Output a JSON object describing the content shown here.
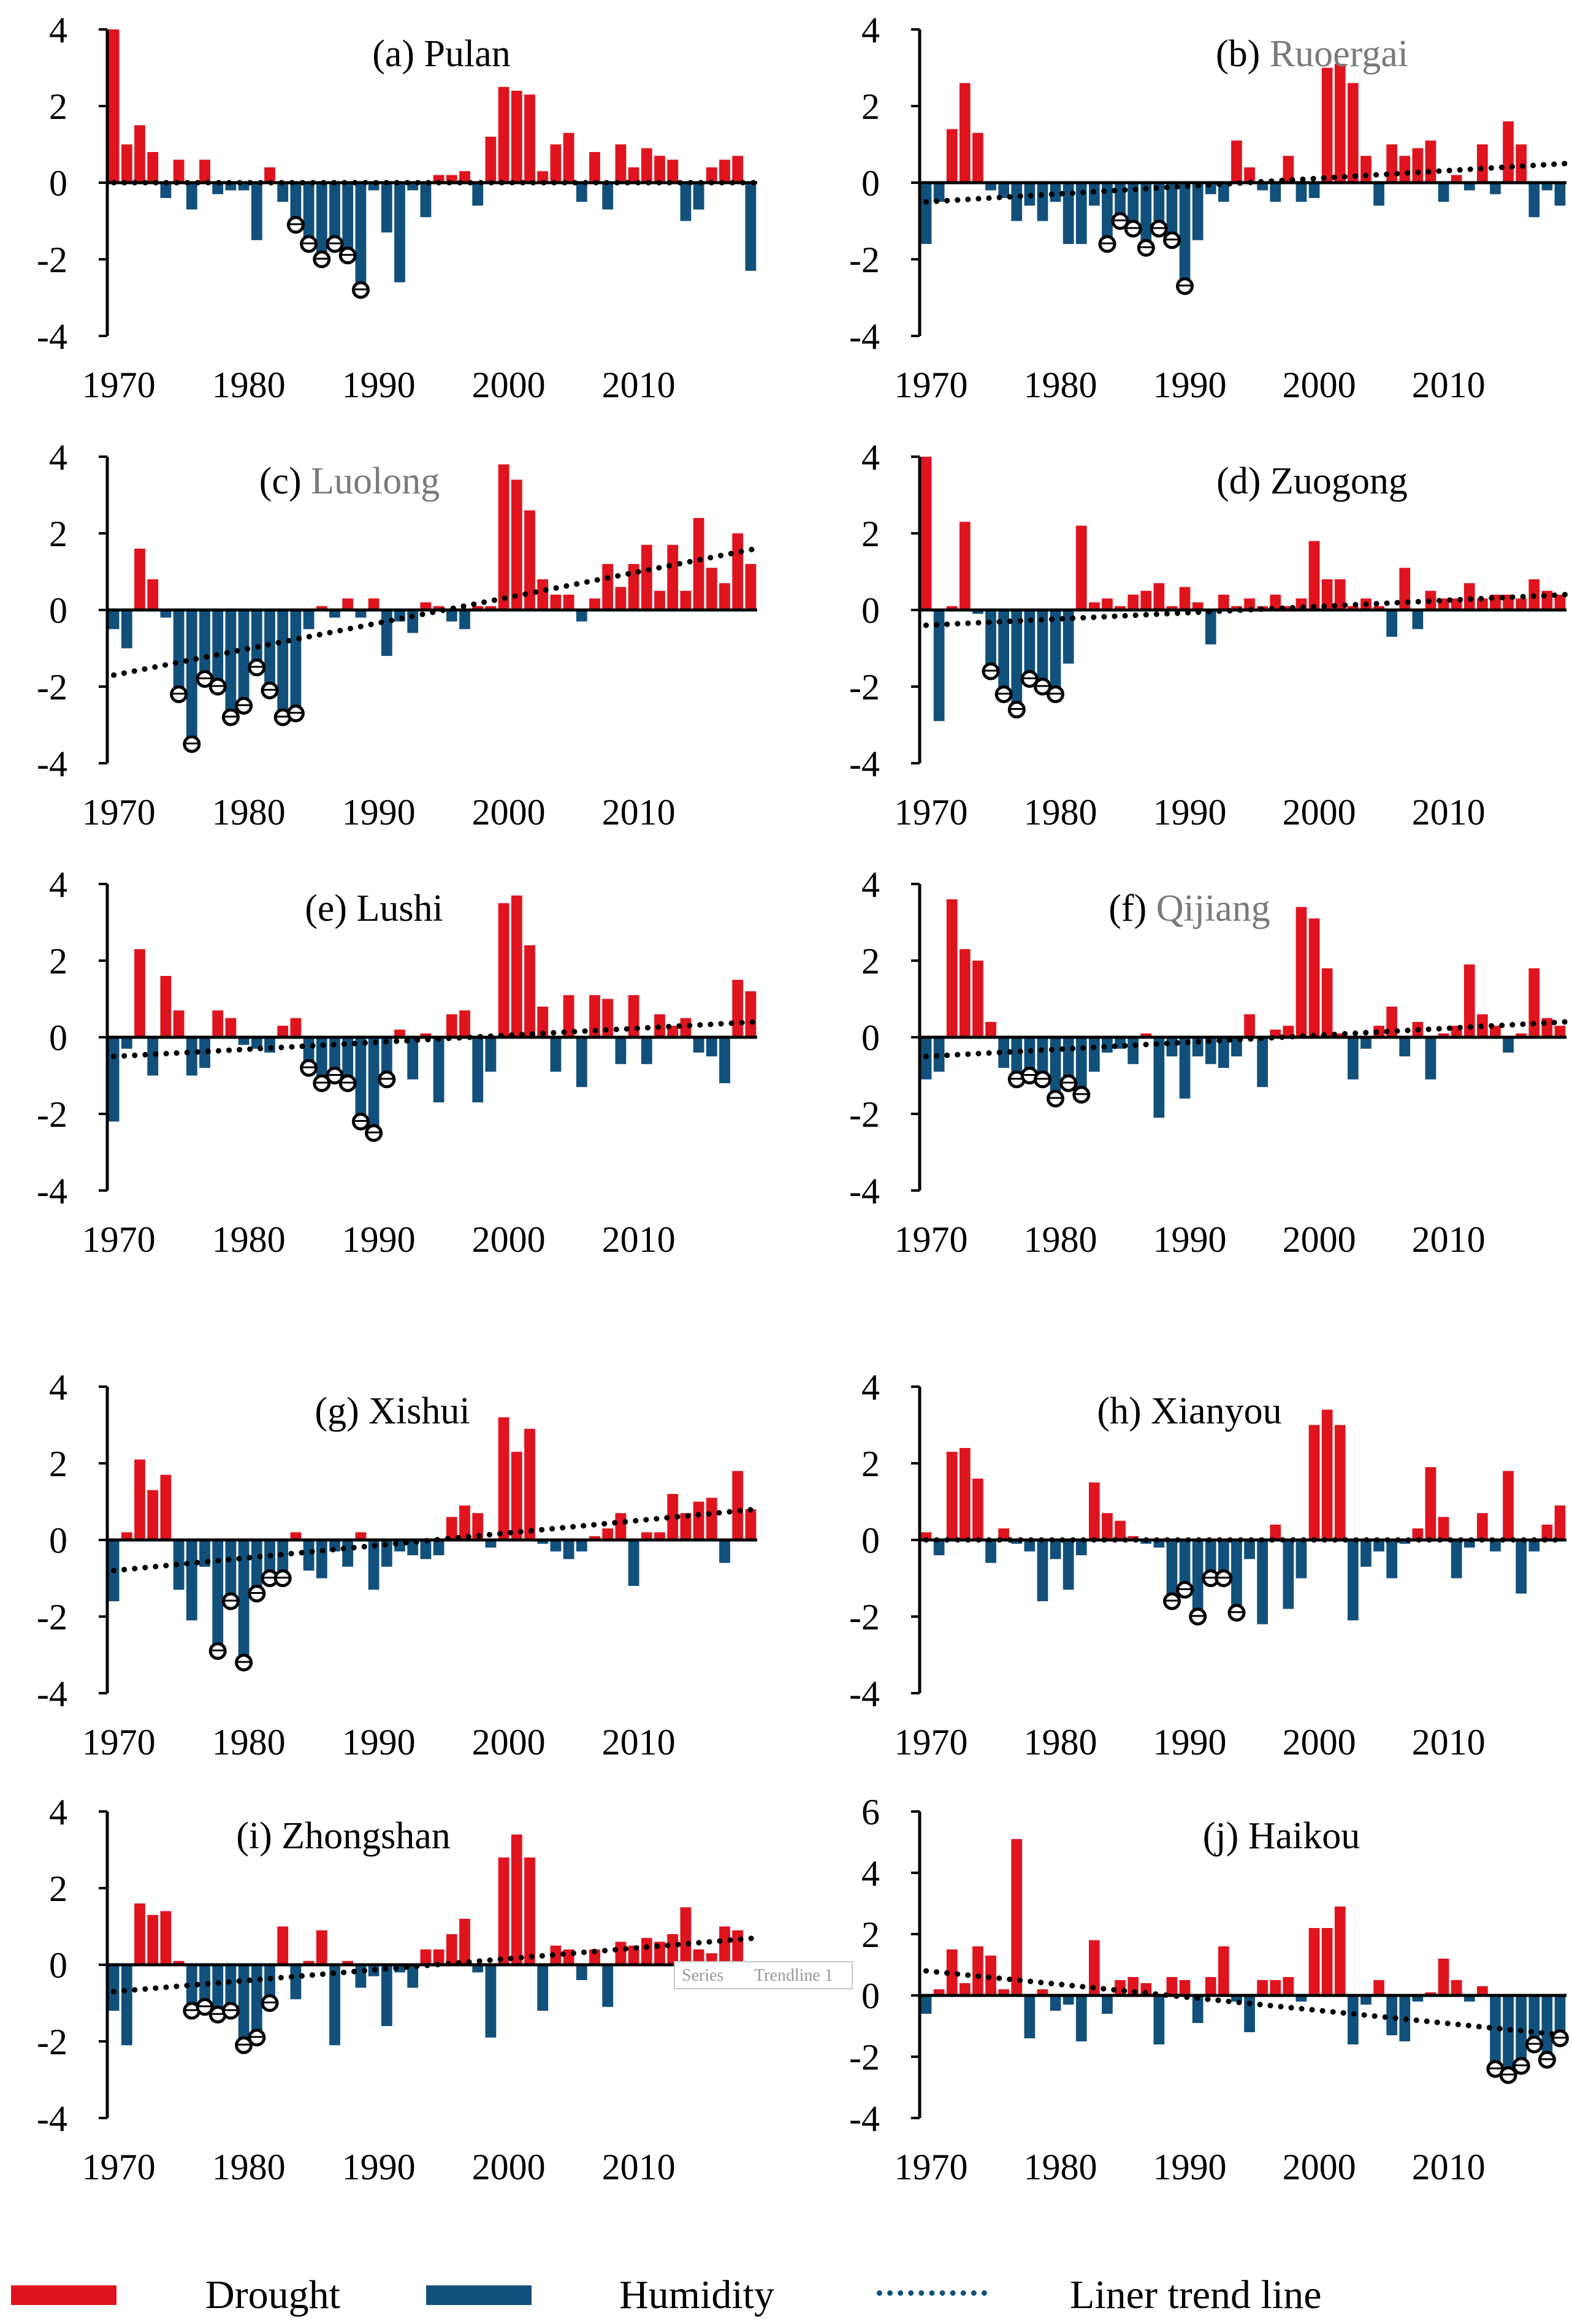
{
  "legend": {
    "drought_label": "Drought",
    "humidity_label": "Humidity",
    "trend_label": "Liner trend line"
  },
  "colors": {
    "drought": "#e0141e",
    "humidity": "#12507c",
    "trend": "#000000"
  },
  "artifact": {
    "tooltip_series": "Series",
    "tooltip_trend": "Trendline 1"
  },
  "chart_data": [
    {
      "type": "bar",
      "title_prefix": "(a) ",
      "title_name": "Pulan",
      "title_name_gray": false,
      "x": [
        1970,
        1971,
        1972,
        1973,
        1974,
        1975,
        1976,
        1977,
        1978,
        1979,
        1980,
        1981,
        1982,
        1983,
        1984,
        1985,
        1986,
        1987,
        1988,
        1989,
        1990,
        1991,
        1992,
        1993,
        1994,
        1995,
        1996,
        1997,
        1998,
        1999,
        2000,
        2001,
        2002,
        2003,
        2004,
        2005,
        2006,
        2007,
        2008,
        2009,
        2010,
        2011,
        2012,
        2013,
        2014,
        2015,
        2016,
        2017,
        2018,
        2019
      ],
      "values": [
        4,
        1,
        1.5,
        0.8,
        -0.4,
        0.6,
        -0.7,
        0.6,
        -0.3,
        -0.2,
        -0.2,
        -1.5,
        0.4,
        -0.5,
        -1.1,
        -1.6,
        -2,
        -1.6,
        -1.9,
        -2.8,
        -0.2,
        -1.3,
        -2.6,
        -0.2,
        -0.9,
        0.2,
        0.2,
        0.3,
        -0.6,
        1.2,
        2.5,
        2.4,
        2.3,
        0.3,
        1,
        1.3,
        -0.5,
        0.8,
        -0.7,
        1,
        0.4,
        0.9,
        0.7,
        0.6,
        -1,
        -0.7,
        0.4,
        0.6,
        0.7,
        -2.3
      ],
      "circled": [
        1984,
        1985,
        1986,
        1987,
        1988,
        1989
      ],
      "trend": [
        0,
        0
      ],
      "x_ticks": [
        1970,
        1980,
        1990,
        2000,
        2010
      ],
      "ylim": [
        -4,
        4
      ],
      "y_ticks": [
        4,
        2,
        0,
        -2,
        -4
      ]
    },
    {
      "type": "bar",
      "title_prefix": "(b) ",
      "title_name": "Ruoergai",
      "title_name_gray": true,
      "x": [
        1970,
        1971,
        1972,
        1973,
        1974,
        1975,
        1976,
        1977,
        1978,
        1979,
        1980,
        1981,
        1982,
        1983,
        1984,
        1985,
        1986,
        1987,
        1988,
        1989,
        1990,
        1991,
        1992,
        1993,
        1994,
        1995,
        1996,
        1997,
        1998,
        1999,
        2000,
        2001,
        2002,
        2003,
        2004,
        2005,
        2006,
        2007,
        2008,
        2009,
        2010,
        2011,
        2012,
        2013,
        2014,
        2015,
        2016,
        2017,
        2018,
        2019
      ],
      "values": [
        -1.6,
        -0.5,
        1.4,
        2.6,
        1.3,
        -0.2,
        -0.4,
        -1,
        -0.6,
        -1,
        -0.5,
        -1.6,
        -1.6,
        -0.6,
        -1.6,
        -1,
        -1.2,
        -1.7,
        -1.2,
        -1.5,
        -2.7,
        -1.5,
        -0.3,
        -0.5,
        1.1,
        0.4,
        -0.2,
        -0.5,
        0.7,
        -0.5,
        -0.4,
        3,
        3.1,
        2.6,
        0.7,
        -0.6,
        1,
        0.7,
        0.9,
        1.1,
        -0.5,
        0.2,
        -0.2,
        1,
        -0.3,
        1.6,
        1,
        -0.9,
        -0.2,
        -0.6
      ],
      "circled": [
        1984,
        1985,
        1986,
        1987,
        1988,
        1989,
        1990
      ],
      "trend": [
        -0.5,
        0.5
      ],
      "x_ticks": [
        1970,
        1980,
        1990,
        2000,
        2010
      ],
      "ylim": [
        -4,
        4
      ],
      "y_ticks": [
        4,
        2,
        0,
        -2,
        -4
      ]
    },
    {
      "type": "bar",
      "title_prefix": "(c) ",
      "title_name": "Luolong",
      "title_name_gray": true,
      "x": [
        1970,
        1971,
        1972,
        1973,
        1974,
        1975,
        1976,
        1977,
        1978,
        1979,
        1980,
        1981,
        1982,
        1983,
        1984,
        1985,
        1986,
        1987,
        1988,
        1989,
        1990,
        1991,
        1992,
        1993,
        1994,
        1995,
        1996,
        1997,
        1998,
        1999,
        2000,
        2001,
        2002,
        2003,
        2004,
        2005,
        2006,
        2007,
        2008,
        2009,
        2010,
        2011,
        2012,
        2013,
        2014,
        2015,
        2016,
        2017,
        2018,
        2019
      ],
      "values": [
        -0.5,
        -1,
        1.6,
        0.8,
        -0.2,
        -2.2,
        -3.5,
        -1.8,
        -2,
        -2.8,
        -2.5,
        -1.5,
        -2.1,
        -2.8,
        -2.7,
        -0.5,
        0.1,
        -0.2,
        0.3,
        -0.2,
        0.3,
        -1.2,
        -0.3,
        -0.6,
        0.2,
        0.1,
        -0.3,
        -0.5,
        0.1,
        0.1,
        3.8,
        3.4,
        2.6,
        0.8,
        0.4,
        0.4,
        -0.3,
        0.3,
        1.2,
        0.6,
        1.2,
        1.7,
        0.5,
        1.7,
        0.5,
        2.4,
        1.1,
        0.7,
        2,
        1.2
      ],
      "circled": [
        1975,
        1976,
        1977,
        1978,
        1979,
        1980,
        1981,
        1982,
        1983,
        1984
      ],
      "trend": [
        -1.7,
        1.6
      ],
      "x_ticks": [
        1970,
        1980,
        1990,
        2000,
        2010
      ],
      "ylim": [
        -4,
        4
      ],
      "y_ticks": [
        4,
        2,
        0,
        -2,
        -4
      ]
    },
    {
      "type": "bar",
      "title_prefix": "(d) ",
      "title_name": "Zuogong",
      "title_name_gray": false,
      "x": [
        1970,
        1971,
        1972,
        1973,
        1974,
        1975,
        1976,
        1977,
        1978,
        1979,
        1980,
        1981,
        1982,
        1983,
        1984,
        1985,
        1986,
        1987,
        1988,
        1989,
        1990,
        1991,
        1992,
        1993,
        1994,
        1995,
        1996,
        1997,
        1998,
        1999,
        2000,
        2001,
        2002,
        2003,
        2004,
        2005,
        2006,
        2007,
        2008,
        2009,
        2010,
        2011,
        2012,
        2013,
        2014,
        2015,
        2016,
        2017,
        2018,
        2019
      ],
      "values": [
        4,
        -2.9,
        0.1,
        2.3,
        -0.1,
        -1.6,
        -2.2,
        -2.6,
        -1.8,
        -2,
        -2.2,
        -1.4,
        2.2,
        0.2,
        0.3,
        0.1,
        0.4,
        0.5,
        0.7,
        0.1,
        0.6,
        0.2,
        -0.9,
        0.4,
        0.1,
        0.3,
        0.1,
        0.4,
        0.1,
        0.3,
        1.8,
        0.8,
        0.8,
        0.1,
        0.3,
        0.1,
        -0.7,
        1.1,
        -0.5,
        0.5,
        0.3,
        0.3,
        0.7,
        0.3,
        0.4,
        0.4,
        0.3,
        0.8,
        0.5,
        0.4
      ],
      "circled": [
        1975,
        1976,
        1977,
        1978,
        1979,
        1980
      ],
      "trend": [
        -0.4,
        0.4
      ],
      "x_ticks": [
        1970,
        1980,
        1990,
        2000,
        2010
      ],
      "ylim": [
        -4,
        4
      ],
      "y_ticks": [
        4,
        2,
        0,
        -2,
        -4
      ]
    },
    {
      "type": "bar",
      "title_prefix": "(e) ",
      "title_name": "Lushi",
      "title_name_gray": false,
      "x": [
        1970,
        1971,
        1972,
        1973,
        1974,
        1975,
        1976,
        1977,
        1978,
        1979,
        1980,
        1981,
        1982,
        1983,
        1984,
        1985,
        1986,
        1987,
        1988,
        1989,
        1990,
        1991,
        1992,
        1993,
        1994,
        1995,
        1996,
        1997,
        1998,
        1999,
        2000,
        2001,
        2002,
        2003,
        2004,
        2005,
        2006,
        2007,
        2008,
        2009,
        2010,
        2011,
        2012,
        2013,
        2014,
        2015,
        2016,
        2017,
        2018,
        2019
      ],
      "values": [
        -2.2,
        -0.3,
        2.3,
        -1,
        1.6,
        0.7,
        -1,
        -0.8,
        0.7,
        0.5,
        -0.2,
        -0.3,
        -0.4,
        0.3,
        0.5,
        -0.8,
        -1.2,
        -1,
        -1.2,
        -2.2,
        -2.5,
        -1.1,
        0.2,
        -1.1,
        0.1,
        -1.7,
        0.6,
        0.7,
        -1.7,
        -0.9,
        3.5,
        3.7,
        2.4,
        0.8,
        -0.9,
        1.1,
        -1.3,
        1.1,
        1,
        -0.7,
        1.1,
        -0.7,
        0.6,
        0.3,
        0.5,
        -0.4,
        -0.5,
        -1.2,
        1.5,
        1.2
      ],
      "circled": [
        1985,
        1986,
        1987,
        1988,
        1989,
        1990,
        1991
      ],
      "trend": [
        -0.5,
        0.4
      ],
      "x_ticks": [
        1970,
        1980,
        1990,
        2000,
        2010
      ],
      "ylim": [
        -4,
        4
      ],
      "y_ticks": [
        4,
        2,
        0,
        -2,
        -4
      ]
    },
    {
      "type": "bar",
      "title_prefix": "(f) ",
      "title_name": "Qijiang",
      "title_name_gray": true,
      "x": [
        1970,
        1971,
        1972,
        1973,
        1974,
        1975,
        1976,
        1977,
        1978,
        1979,
        1980,
        1981,
        1982,
        1983,
        1984,
        1985,
        1986,
        1987,
        1988,
        1989,
        1990,
        1991,
        1992,
        1993,
        1994,
        1995,
        1996,
        1997,
        1998,
        1999,
        2000,
        2001,
        2002,
        2003,
        2004,
        2005,
        2006,
        2007,
        2008,
        2009,
        2010,
        2011,
        2012,
        2013,
        2014,
        2015,
        2016,
        2017,
        2018,
        2019
      ],
      "values": [
        -1.1,
        -0.9,
        3.6,
        2.3,
        2,
        0.4,
        -0.8,
        -1.1,
        -1,
        -1.1,
        -1.6,
        -1.2,
        -1.5,
        -0.9,
        -0.4,
        -0.3,
        -0.7,
        0.1,
        -2.1,
        -0.5,
        -1.6,
        -0.5,
        -0.7,
        -0.8,
        -0.5,
        0.6,
        -1.3,
        0.2,
        0.3,
        3.4,
        3.1,
        1.8,
        0.1,
        -1.1,
        -0.3,
        0.3,
        0.8,
        -0.5,
        0.4,
        -1.1,
        0.1,
        0.3,
        1.9,
        0.6,
        0.3,
        -0.4,
        0.1,
        1.8,
        0.5,
        0.3
      ],
      "circled": [
        1977,
        1978,
        1979,
        1980,
        1981,
        1982
      ],
      "trend": [
        -0.5,
        0.4
      ],
      "x_ticks": [
        1970,
        1980,
        1990,
        2000,
        2010
      ],
      "ylim": [
        -4,
        4
      ],
      "y_ticks": [
        4,
        2,
        0,
        -2,
        -4
      ]
    },
    {
      "type": "bar",
      "title_prefix": "(g) ",
      "title_name": "Xishui",
      "title_name_gray": false,
      "x": [
        1970,
        1971,
        1972,
        1973,
        1974,
        1975,
        1976,
        1977,
        1978,
        1979,
        1980,
        1981,
        1982,
        1983,
        1984,
        1985,
        1986,
        1987,
        1988,
        1989,
        1990,
        1991,
        1992,
        1993,
        1994,
        1995,
        1996,
        1997,
        1998,
        1999,
        2000,
        2001,
        2002,
        2003,
        2004,
        2005,
        2006,
        2007,
        2008,
        2009,
        2010,
        2011,
        2012,
        2013,
        2014,
        2015,
        2016,
        2017,
        2018,
        2019
      ],
      "values": [
        -1.6,
        0.2,
        2.1,
        1.3,
        1.7,
        -1.3,
        -2.1,
        -0.7,
        -2.9,
        -1.6,
        -3.2,
        -1.4,
        -1,
        -1,
        0.2,
        -0.8,
        -1,
        -0.3,
        -0.7,
        0.2,
        -1.3,
        -0.7,
        -0.3,
        -0.4,
        -0.5,
        -0.4,
        0.6,
        0.9,
        0.7,
        -0.2,
        3.2,
        2.3,
        2.9,
        -0.1,
        -0.3,
        -0.5,
        -0.3,
        0.1,
        0.3,
        0.7,
        -1.2,
        0.2,
        0.2,
        1.2,
        0.7,
        1,
        1.1,
        -0.6,
        1.8,
        0.8
      ],
      "circled": [
        1978,
        1979,
        1980,
        1981,
        1982,
        1983
      ],
      "trend": [
        -0.8,
        0.8
      ],
      "x_ticks": [
        1970,
        1980,
        1990,
        2000,
        2010
      ],
      "ylim": [
        -4,
        4
      ],
      "y_ticks": [
        4,
        2,
        0,
        -2,
        -4
      ]
    },
    {
      "type": "bar",
      "title_prefix": "(h) ",
      "title_name": "Xianyou",
      "title_name_gray": false,
      "x": [
        1970,
        1971,
        1972,
        1973,
        1974,
        1975,
        1976,
        1977,
        1978,
        1979,
        1980,
        1981,
        1982,
        1983,
        1984,
        1985,
        1986,
        1987,
        1988,
        1989,
        1990,
        1991,
        1992,
        1993,
        1994,
        1995,
        1996,
        1997,
        1998,
        1999,
        2000,
        2001,
        2002,
        2003,
        2004,
        2005,
        2006,
        2007,
        2008,
        2009,
        2010,
        2011,
        2012,
        2013,
        2014,
        2015,
        2016,
        2017,
        2018,
        2019
      ],
      "values": [
        0.2,
        -0.4,
        2.3,
        2.4,
        1.6,
        -0.6,
        0.3,
        -0.1,
        -0.3,
        -1.6,
        -0.5,
        -1.3,
        -0.4,
        1.5,
        0.7,
        0.5,
        0.1,
        -0.1,
        -0.2,
        -1.6,
        -1.3,
        -2,
        -1,
        -1,
        -1.9,
        -0.5,
        -2.2,
        0.4,
        -1.8,
        -1,
        3,
        3.4,
        3,
        -2.1,
        -0.7,
        -0.3,
        -1,
        -0.1,
        0.3,
        1.9,
        0.6,
        -1,
        -0.2,
        0.7,
        -0.3,
        1.8,
        -1.4,
        -0.3,
        0.4,
        0.9
      ],
      "circled": [
        1989,
        1990,
        1991,
        1992,
        1993,
        1994
      ],
      "trend": [
        0,
        0
      ],
      "x_ticks": [
        1970,
        1980,
        1990,
        2000,
        2010
      ],
      "ylim": [
        -4,
        4
      ],
      "y_ticks": [
        4,
        2,
        0,
        -2,
        -4
      ]
    },
    {
      "type": "bar",
      "title_prefix": "(i) ",
      "title_name": "Zhongshan",
      "title_name_gray": false,
      "x": [
        1970,
        1971,
        1972,
        1973,
        1974,
        1975,
        1976,
        1977,
        1978,
        1979,
        1980,
        1981,
        1982,
        1983,
        1984,
        1985,
        1986,
        1987,
        1988,
        1989,
        1990,
        1991,
        1992,
        1993,
        1994,
        1995,
        1996,
        1997,
        1998,
        1999,
        2000,
        2001,
        2002,
        2003,
        2004,
        2005,
        2006,
        2007,
        2008,
        2009,
        2010,
        2011,
        2012,
        2013,
        2014,
        2015,
        2016,
        2017,
        2018,
        2019
      ],
      "values": [
        -1.2,
        -2.1,
        1.6,
        1.3,
        1.4,
        0.1,
        -1.2,
        -1.1,
        -1.3,
        -1.2,
        -2.1,
        -1.9,
        -1,
        1,
        -0.9,
        0.1,
        0.9,
        -2.1,
        0.1,
        -0.6,
        -0.3,
        -1.6,
        -0.2,
        -0.6,
        0.4,
        0.4,
        0.8,
        1.2,
        -0.2,
        -1.9,
        2.8,
        3.4,
        2.8,
        -1.2,
        0.5,
        0.4,
        -0.4,
        0.4,
        -1.1,
        0.6,
        0.5,
        0.7,
        0.6,
        0.8,
        1.5,
        0.4,
        0.3,
        1,
        0.9,
        -0.5
      ],
      "circled": [
        1976,
        1977,
        1978,
        1979,
        1980,
        1981,
        1982
      ],
      "trend": [
        -0.7,
        0.7
      ],
      "x_ticks": [
        1970,
        1980,
        1990,
        2000,
        2010
      ],
      "ylim": [
        -4,
        4
      ],
      "y_ticks": [
        4,
        2,
        0,
        -2,
        -4
      ]
    },
    {
      "type": "bar",
      "title_prefix": "(j) ",
      "title_name": "Haikou",
      "title_name_gray": false,
      "x": [
        1970,
        1971,
        1972,
        1973,
        1974,
        1975,
        1976,
        1977,
        1978,
        1979,
        1980,
        1981,
        1982,
        1983,
        1984,
        1985,
        1986,
        1987,
        1988,
        1989,
        1990,
        1991,
        1992,
        1993,
        1994,
        1995,
        1996,
        1997,
        1998,
        1999,
        2000,
        2001,
        2002,
        2003,
        2004,
        2005,
        2006,
        2007,
        2008,
        2009,
        2010,
        2011,
        2012,
        2013,
        2014,
        2015,
        2016,
        2017,
        2018,
        2019
      ],
      "values": [
        -0.6,
        0.2,
        1.5,
        0.4,
        1.6,
        1.3,
        0.2,
        5.1,
        -1.4,
        0.2,
        -0.5,
        -0.3,
        -1.5,
        1.8,
        -0.6,
        0.5,
        0.6,
        0.4,
        -1.6,
        0.6,
        0.5,
        -0.9,
        0.6,
        1.6,
        -0.2,
        -1.2,
        0.5,
        0.5,
        0.6,
        -0.2,
        2.2,
        2.2,
        2.9,
        -1.6,
        -0.3,
        0.5,
        -1.3,
        -1.5,
        -0.2,
        0.1,
        1.2,
        0.5,
        -0.2,
        0.3,
        -2.4,
        -2.6,
        -2.3,
        -1.6,
        -2.1,
        -1.4
      ],
      "circled": [
        2014,
        2015,
        2016,
        2017,
        2018,
        2019
      ],
      "trend": [
        0.8,
        -1.3
      ],
      "x_ticks": [
        1970,
        1980,
        1990,
        2000,
        2010
      ],
      "ylim": [
        -4,
        6
      ],
      "y_ticks": [
        6,
        4,
        2,
        0,
        -2,
        -4
      ]
    }
  ]
}
